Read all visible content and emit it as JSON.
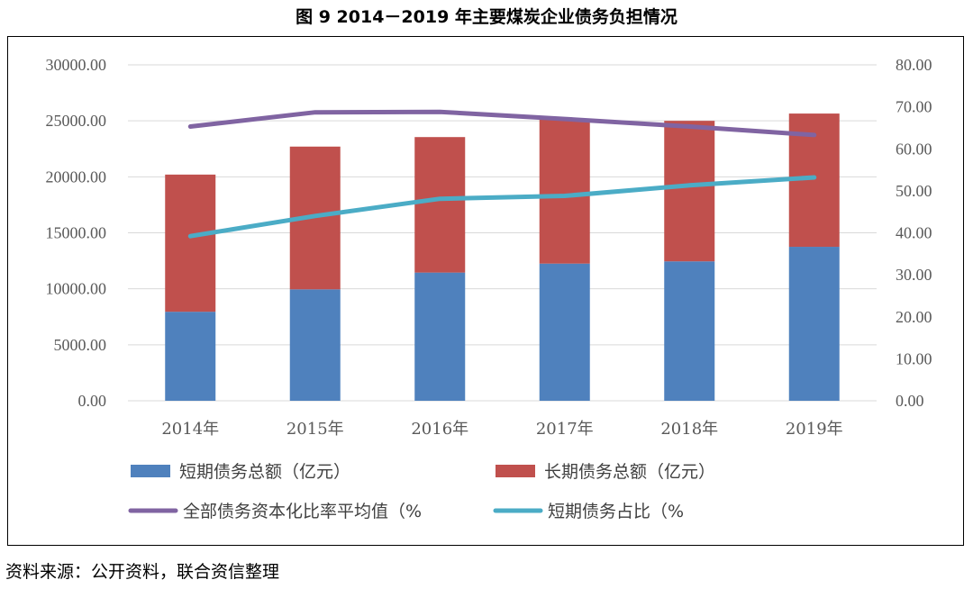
{
  "caption": "图 9   2014－2019 年主要煤炭企业债务负担情况",
  "source": "资料来源：公开资料，联合资信整理",
  "chart_data": {
    "type": "bar",
    "stacked": true,
    "categories": [
      "2014年",
      "2015年",
      "2016年",
      "2017年",
      "2018年",
      "2019年"
    ],
    "y_left": {
      "min": 0,
      "max": 30000,
      "ticks": [
        "0.00",
        "5000.00",
        "10000.00",
        "15000.00",
        "20000.00",
        "25000.00",
        "30000.00"
      ]
    },
    "y_right": {
      "min": 0,
      "max": 80,
      "ticks": [
        "0.00",
        "10.00",
        "20.00",
        "30.00",
        "40.00",
        "50.00",
        "60.00",
        "70.00",
        "80.00"
      ]
    },
    "grid": true,
    "legend_position": "bottom",
    "series": [
      {
        "name": "短期债务总额（亿元）",
        "type": "bar",
        "axis": "left",
        "color": "#4f81bd",
        "values": [
          7950,
          9950,
          11450,
          12250,
          12450,
          13750
        ]
      },
      {
        "name": "长期债务总额（亿元）",
        "type": "bar",
        "axis": "left",
        "color": "#c0504d",
        "values": [
          12250,
          12750,
          12100,
          12850,
          12550,
          11900
        ]
      },
      {
        "name": "全部债务资本化比率平均值（%",
        "type": "line",
        "axis": "right",
        "color": "#8064a2",
        "values": [
          65.3,
          68.7,
          68.8,
          67.1,
          65.3,
          63.3
        ]
      },
      {
        "name": "短期债务占比（%",
        "type": "line",
        "axis": "right",
        "color": "#4bacc6",
        "values": [
          39.2,
          44.0,
          48.1,
          48.8,
          51.3,
          53.2
        ]
      }
    ]
  }
}
